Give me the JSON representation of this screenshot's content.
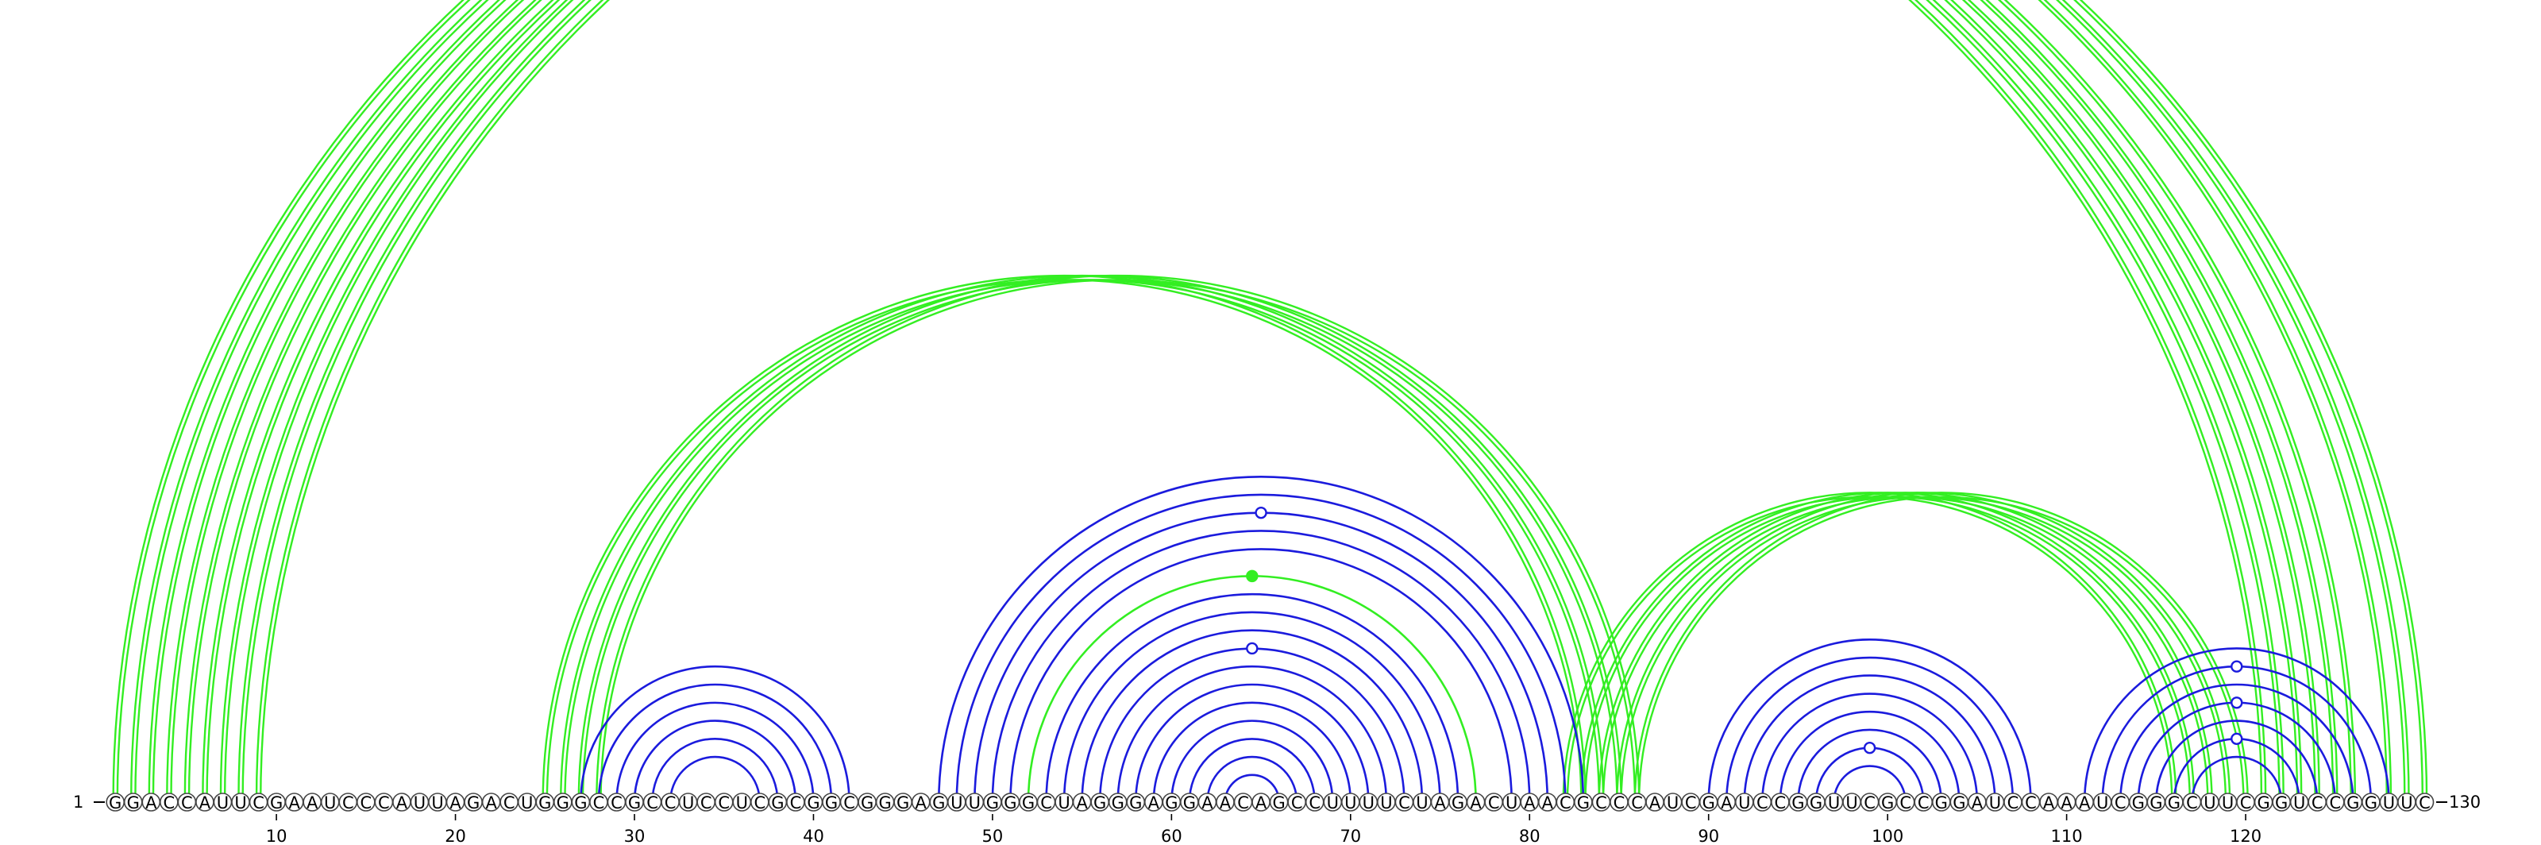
{
  "sequence": "GGACCAUUCGAAUCCCAUUAGACUGGGCCGCCUCCUCGCGGCGGGAGUUGGGCUAGGGAGGAACAGCCUUUUCUAGACUAACGCCCAUCGAUCCGGUUCGCCGGAUCCAAAUCGGGCUUCGGUCCGGUUC",
  "start_label": "1",
  "end_label": "130",
  "ticks": [
    10,
    20,
    30,
    40,
    50,
    60,
    70,
    80,
    90,
    100,
    110,
    120
  ],
  "colors": {
    "green": "#33ee22",
    "blue": "#1b1bdd",
    "node_stroke": "#444444"
  },
  "arc_groups": [
    {
      "color": "green",
      "style": "double",
      "pairs": [
        [
          1,
          121
        ],
        [
          2,
          122
        ],
        [
          3,
          123
        ],
        [
          4,
          124
        ],
        [
          5,
          125
        ],
        [
          6,
          126
        ],
        [
          7,
          128
        ],
        [
          8,
          129
        ],
        [
          9,
          130
        ]
      ]
    },
    {
      "color": "green",
      "style": "double",
      "pairs": [
        [
          25,
          83
        ],
        [
          26,
          84
        ],
        [
          27,
          85
        ],
        [
          28,
          86
        ]
      ]
    },
    {
      "color": "green",
      "style": "double",
      "pairs": [
        [
          82,
          116
        ],
        [
          83,
          117
        ],
        [
          84,
          118
        ],
        [
          85,
          119
        ],
        [
          86,
          120
        ]
      ]
    },
    {
      "color": "green",
      "style": "single",
      "pairs": [
        [
          52,
          77
        ]
      ]
    },
    {
      "color": "blue",
      "style": "single",
      "pairs": [
        [
          27,
          42
        ],
        [
          28,
          41
        ],
        [
          29,
          40
        ],
        [
          30,
          39
        ],
        [
          31,
          38
        ],
        [
          32,
          37
        ]
      ]
    },
    {
      "color": "blue",
      "style": "single",
      "pairs": [
        [
          47,
          83
        ],
        [
          48,
          82
        ],
        [
          49,
          81
        ],
        [
          50,
          80
        ],
        [
          51,
          79
        ],
        [
          53,
          76
        ],
        [
          54,
          75
        ],
        [
          55,
          74
        ],
        [
          56,
          73
        ],
        [
          57,
          72
        ],
        [
          58,
          71
        ],
        [
          59,
          70
        ],
        [
          60,
          69
        ],
        [
          61,
          68
        ],
        [
          62,
          67
        ],
        [
          63,
          66
        ]
      ]
    },
    {
      "color": "blue",
      "style": "single",
      "pairs": [
        [
          90,
          108
        ],
        [
          91,
          107
        ],
        [
          92,
          106
        ],
        [
          93,
          105
        ],
        [
          94,
          104
        ],
        [
          95,
          103
        ],
        [
          96,
          102
        ],
        [
          97,
          101
        ]
      ]
    },
    {
      "color": "blue",
      "style": "single",
      "pairs": [
        [
          111,
          128
        ],
        [
          112,
          127
        ],
        [
          113,
          126
        ],
        [
          114,
          125
        ],
        [
          115,
          124
        ],
        [
          116,
          123
        ],
        [
          117,
          122
        ]
      ]
    }
  ],
  "markers": [
    {
      "pair": [
        5,
        126
      ],
      "color": "green",
      "filled": false
    },
    {
      "pair": [
        49,
        81
      ],
      "color": "blue",
      "filled": false
    },
    {
      "pair": [
        52,
        77
      ],
      "color": "green",
      "filled": true
    },
    {
      "pair": [
        56,
        73
      ],
      "color": "blue",
      "filled": false
    },
    {
      "pair": [
        96,
        102
      ],
      "color": "blue",
      "filled": false
    },
    {
      "pair": [
        112,
        127
      ],
      "color": "blue",
      "filled": false
    },
    {
      "pair": [
        114,
        125
      ],
      "color": "blue",
      "filled": false
    },
    {
      "pair": [
        116,
        123
      ],
      "color": "blue",
      "filled": false
    }
  ]
}
